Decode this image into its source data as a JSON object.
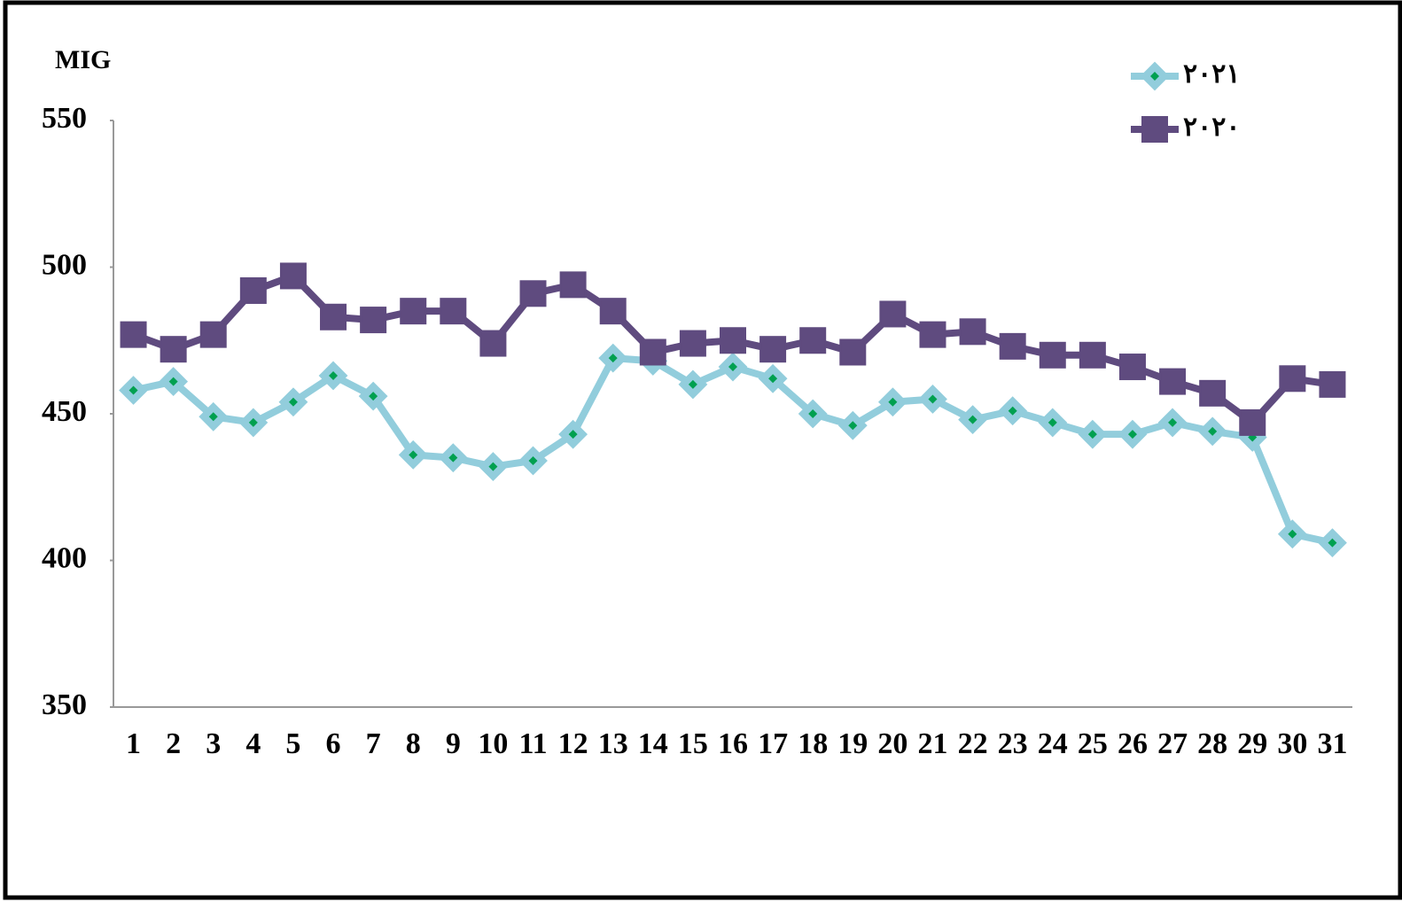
{
  "chart_data": {
    "type": "line",
    "y_label": "MIG",
    "categories": [
      1,
      2,
      3,
      4,
      5,
      6,
      7,
      8,
      9,
      10,
      11,
      12,
      13,
      14,
      15,
      16,
      17,
      18,
      19,
      20,
      21,
      22,
      23,
      24,
      25,
      26,
      27,
      28,
      29,
      30,
      31
    ],
    "series": [
      {
        "name": "٢٠٢١",
        "color": "#92cddc",
        "marker": "diamond",
        "marker_center": "#00a050",
        "values": [
          458,
          461,
          449,
          447,
          454,
          463,
          456,
          436,
          435,
          432,
          434,
          443,
          469,
          468,
          460,
          466,
          462,
          450,
          446,
          454,
          455,
          448,
          451,
          447,
          443,
          443,
          447,
          444,
          442,
          409,
          406
        ]
      },
      {
        "name": "٢٠٢٠",
        "color": "#5f4b7f",
        "marker": "square",
        "values": [
          477,
          472,
          477,
          492,
          497,
          483,
          482,
          485,
          485,
          474,
          491,
          494,
          485,
          471,
          474,
          475,
          472,
          475,
          471,
          484,
          477,
          478,
          473,
          470,
          470,
          466,
          461,
          457,
          447,
          462,
          460
        ]
      }
    ],
    "ylim": [
      350,
      550
    ],
    "yticks": [
      350,
      400,
      450,
      500,
      550
    ],
    "grid": false,
    "legend": "top-right"
  }
}
